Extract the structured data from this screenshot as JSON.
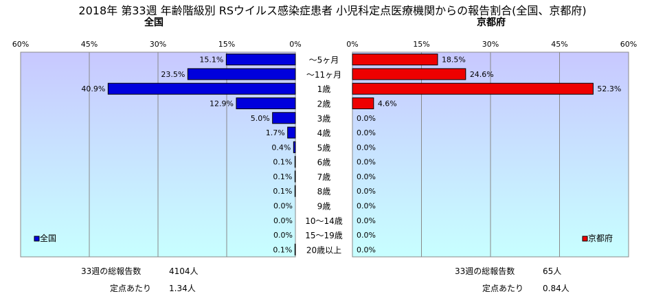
{
  "title": "2018年 第33週 年齢階級別 RSウイルス感染症患者 小児科定点医療機関からの報告割合(全国、京都府)",
  "left_panel_title": "全国",
  "right_panel_title": "京都府",
  "colors": {
    "left_bar": "#0000dd",
    "right_bar": "#ee0000",
    "plot_bg_top": "#c8c8ff",
    "plot_bg_bottom": "#c8ffff",
    "grid": "#888888"
  },
  "chart_data": {
    "type": "bar",
    "orientation": "horizontal",
    "layout": "back-to-back",
    "unit": "%",
    "xlim": [
      0,
      60
    ],
    "ticks": [
      0,
      15,
      30,
      45,
      60
    ],
    "tick_labels": [
      "0%",
      "15%",
      "30%",
      "45%",
      "60%"
    ],
    "categories": [
      "〜5ヶ月",
      "〜11ヶ月",
      "1歳",
      "2歳",
      "3歳",
      "4歳",
      "5歳",
      "6歳",
      "7歳",
      "8歳",
      "9歳",
      "10〜14歳",
      "15〜19歳",
      "20歳以上"
    ],
    "series": [
      {
        "name": "全国",
        "side": "left",
        "values": [
          15.1,
          23.5,
          40.9,
          12.9,
          5.0,
          1.7,
          0.4,
          0.1,
          0.1,
          0.1,
          0.0,
          0.0,
          0.0,
          0.1
        ],
        "labels": [
          "15.1%",
          "23.5%",
          "40.9%",
          "12.9%",
          "5.0%",
          "1.7%",
          "0.4%",
          "0.1%",
          "0.1%",
          "0.1%",
          "0.0%",
          "0.0%",
          "0.0%",
          "0.1%"
        ]
      },
      {
        "name": "京都府",
        "side": "right",
        "values": [
          18.5,
          24.6,
          52.3,
          4.6,
          0.0,
          0.0,
          0.0,
          0.0,
          0.0,
          0.0,
          0.0,
          0.0,
          0.0,
          0.0
        ],
        "labels": [
          "18.5%",
          "24.6%",
          "52.3%",
          "4.6%",
          "0.0%",
          "0.0%",
          "0.0%",
          "0.0%",
          "0.0%",
          "0.0%",
          "0.0%",
          "0.0%",
          "0.0%",
          "0.0%"
        ]
      }
    ],
    "grid": true,
    "legend": [
      {
        "label": "全国",
        "placement": "bottom-left"
      },
      {
        "label": "京都府",
        "placement": "bottom-right"
      }
    ]
  },
  "footer": {
    "left": {
      "total_label": "33週の総報告数",
      "total_value": "4104人",
      "per_label": "定点あたり",
      "per_value": "1.34人"
    },
    "right": {
      "total_label": "33週の総報告数",
      "total_value": "65人",
      "per_label": "定点あたり",
      "per_value": "0.84人"
    }
  }
}
